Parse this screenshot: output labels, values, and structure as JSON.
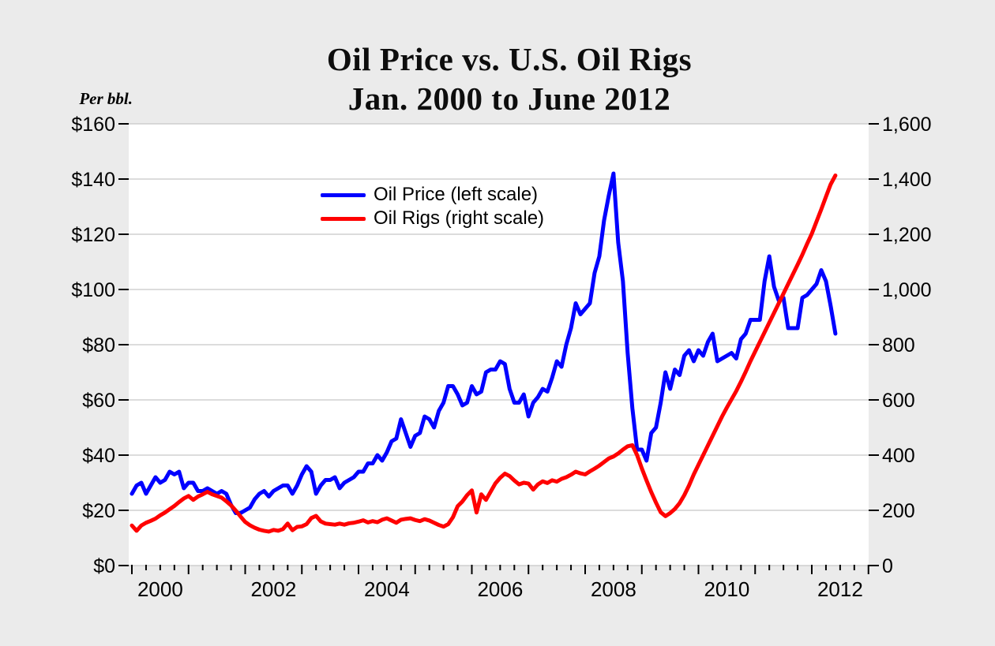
{
  "page": {
    "background": "#ebebeb",
    "plot_background": "#ffffff",
    "gridline_color": "#c6c6c6"
  },
  "chart_data": {
    "type": "line",
    "title": "Oil Price vs. U.S. Oil Rigs",
    "subtitle": "Jan. 2000 to June 2012",
    "left_axis_label": "Per bbl.",
    "left_axis": {
      "tick_labels": [
        "$0",
        "$20",
        "$40",
        "$60",
        "$80",
        "$100",
        "$120",
        "$140",
        "$160"
      ],
      "min": 0,
      "max": 160
    },
    "right_axis": {
      "tick_labels": [
        "0",
        "200",
        "400",
        "600",
        "800",
        "1,000",
        "1,200",
        "1,400",
        "1,600"
      ],
      "min": 0,
      "max": 1600
    },
    "x_axis": {
      "year_labels": [
        "2000",
        "2002",
        "2004",
        "2006",
        "2008",
        "2010",
        "2012"
      ],
      "start_month": "2000-01",
      "end_month": "2012-06",
      "years_shown": 13,
      "minor_ticks_per_year": 4
    },
    "grid": "horizontal-only",
    "legend_position": "inside-upper-middle",
    "legend": [
      {
        "label": "Oil Price (left scale)",
        "color": "#0000ff"
      },
      {
        "label": "Oil Rigs (right scale)",
        "color": "#ff0000"
      }
    ],
    "series": [
      {
        "name": "Oil Price",
        "axis": "left",
        "unit": "USD per barrel",
        "color": "#0000ff",
        "monthly_values": [
          26,
          29,
          30,
          26,
          29,
          32,
          30,
          31,
          34,
          33,
          34,
          28,
          30,
          30,
          27,
          27,
          28,
          27,
          26,
          27,
          26,
          22,
          19,
          19,
          20,
          21,
          24,
          26,
          27,
          25,
          27,
          28,
          29,
          29,
          26,
          29,
          33,
          36,
          34,
          26,
          29,
          31,
          31,
          32,
          28,
          30,
          31,
          32,
          34,
          34,
          37,
          37,
          40,
          38,
          41,
          45,
          46,
          53,
          48,
          43,
          47,
          48,
          54,
          53,
          50,
          56,
          59,
          65,
          65,
          62,
          58,
          59,
          65,
          62,
          63,
          70,
          71,
          71,
          74,
          73,
          64,
          59,
          59,
          62,
          54,
          59,
          61,
          64,
          63,
          68,
          74,
          72,
          80,
          86,
          95,
          91,
          93,
          95,
          106,
          112,
          125,
          134,
          142,
          117,
          103,
          77,
          57,
          42,
          42,
          38,
          48,
          50,
          59,
          70,
          64,
          71,
          69,
          76,
          78,
          74,
          78,
          76,
          81,
          84,
          74,
          75,
          76,
          77,
          75,
          82,
          84,
          89,
          89,
          89,
          103,
          112,
          101,
          96,
          97,
          86,
          86,
          86,
          97,
          98,
          100,
          102,
          107,
          103,
          94,
          84
        ]
      },
      {
        "name": "Oil Rigs",
        "axis": "right",
        "unit": "rig count",
        "color": "#ff0000",
        "monthly_values": [
          145,
          126,
          145,
          155,
          162,
          170,
          182,
          192,
          204,
          216,
          230,
          243,
          252,
          238,
          250,
          258,
          267,
          258,
          252,
          246,
          233,
          218,
          199,
          178,
          158,
          146,
          137,
          130,
          126,
          123,
          129,
          126,
          132,
          152,
          128,
          140,
          142,
          150,
          172,
          180,
          160,
          152,
          150,
          148,
          152,
          148,
          153,
          155,
          159,
          164,
          156,
          161,
          157,
          166,
          171,
          163,
          155,
          166,
          169,
          171,
          165,
          161,
          168,
          163,
          155,
          147,
          141,
          150,
          175,
          215,
          232,
          255,
          272,
          192,
          258,
          238,
          268,
          298,
          318,
          333,
          324,
          308,
          294,
          300,
          297,
          275,
          294,
          305,
          299,
          309,
          304,
          314,
          320,
          329,
          340,
          334,
          330,
          341,
          351,
          362,
          375,
          388,
          395,
          406,
          420,
          432,
          436,
          400,
          352,
          308,
          266,
          228,
          193,
          179,
          190,
          205,
          226,
          255,
          290,
          330,
          365,
          400,
          435,
          470,
          505,
          540,
          572,
          602,
          632,
          666,
          702,
          740,
          775,
          810,
          845,
          880,
          915,
          950,
          985,
          1020,
          1055,
          1090,
          1126,
          1165,
          1202,
          1246,
          1290,
          1336,
          1381,
          1413
        ]
      }
    ]
  }
}
